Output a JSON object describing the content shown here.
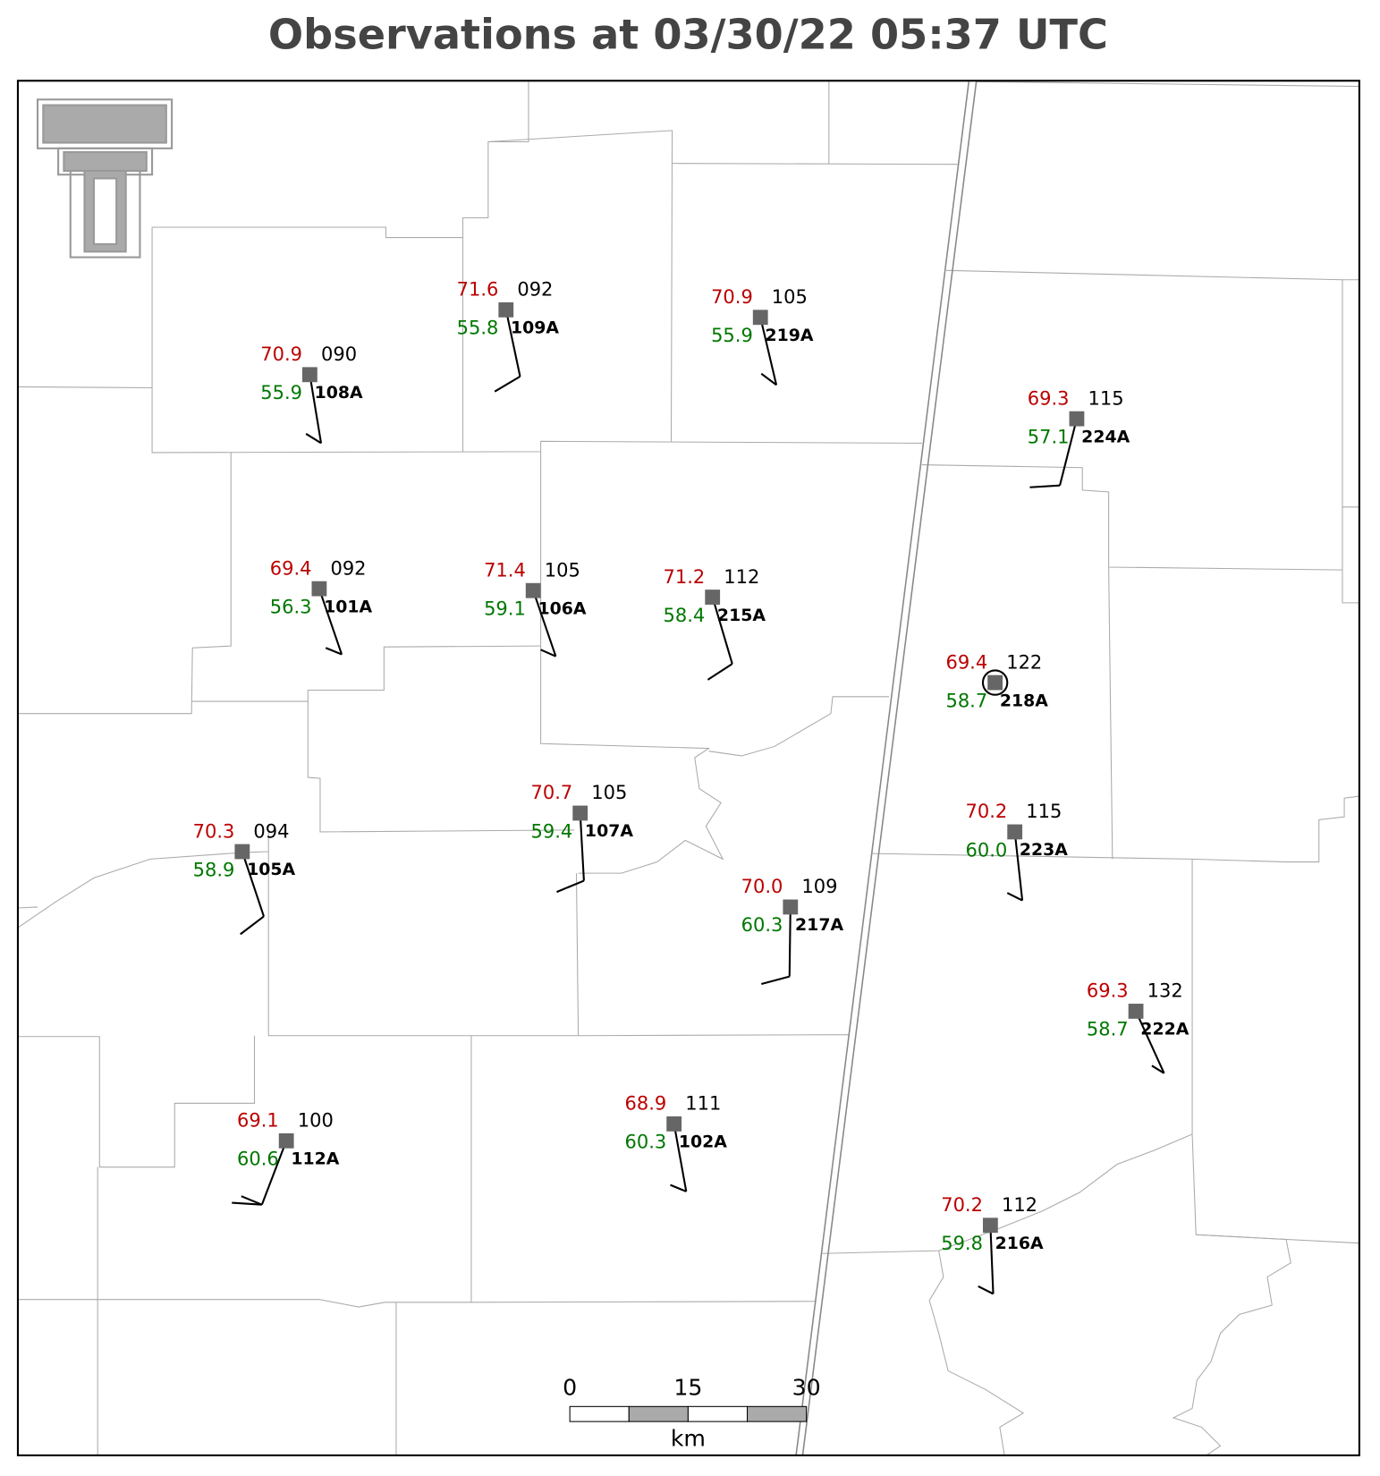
{
  "title": "Observations at 03/30/22 05:37 UTC",
  "stations": [
    {
      "id": "108A",
      "temperature": "70.9",
      "dewpoint": "55.9",
      "pressure": "090"
    },
    {
      "id": "109A",
      "temperature": "71.6",
      "dewpoint": "55.8",
      "pressure": "092"
    },
    {
      "id": "219A",
      "temperature": "70.9",
      "dewpoint": "55.9",
      "pressure": "105"
    },
    {
      "id": "224A",
      "temperature": "69.3",
      "dewpoint": "57.1",
      "pressure": "115"
    },
    {
      "id": "101A",
      "temperature": "69.4",
      "dewpoint": "56.3",
      "pressure": "092"
    },
    {
      "id": "106A",
      "temperature": "71.4",
      "dewpoint": "59.1",
      "pressure": "105"
    },
    {
      "id": "215A",
      "temperature": "71.2",
      "dewpoint": "58.4",
      "pressure": "112"
    },
    {
      "id": "218A",
      "temperature": "69.4",
      "dewpoint": "58.7",
      "pressure": "122"
    },
    {
      "id": "223A",
      "temperature": "70.2",
      "dewpoint": "60.0",
      "pressure": "115"
    },
    {
      "id": "105A",
      "temperature": "70.3",
      "dewpoint": "58.9",
      "pressure": "094"
    },
    {
      "id": "107A",
      "temperature": "70.7",
      "dewpoint": "59.4",
      "pressure": "105"
    },
    {
      "id": "217A",
      "temperature": "70.0",
      "dewpoint": "60.3",
      "pressure": "109"
    },
    {
      "id": "222A",
      "temperature": "69.3",
      "dewpoint": "58.7",
      "pressure": "132"
    },
    {
      "id": "112A",
      "temperature": "69.1",
      "dewpoint": "60.6",
      "pressure": "100"
    },
    {
      "id": "102A",
      "temperature": "68.9",
      "dewpoint": "60.3",
      "pressure": "111"
    },
    {
      "id": "216A",
      "temperature": "70.2",
      "dewpoint": "59.8",
      "pressure": "112"
    }
  ],
  "scale_bar": {
    "labels": [
      "0",
      "15",
      "30"
    ],
    "unit": "km"
  }
}
